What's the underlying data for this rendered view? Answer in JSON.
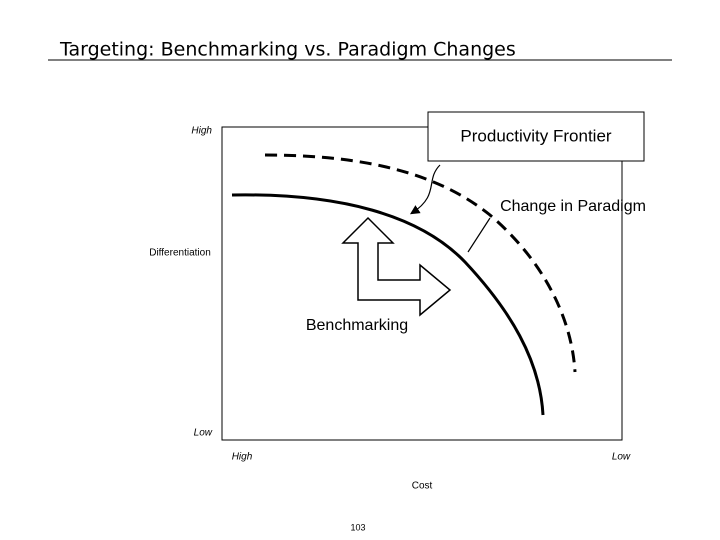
{
  "header": {
    "title": "Targeting: Benchmarking vs. Paradigm Changes"
  },
  "axes": {
    "y_high": "High",
    "y_low": "Low",
    "y_label": "Differentiation",
    "x_high": "High",
    "x_low": "Low",
    "x_label": "Cost"
  },
  "annotations": {
    "frontier": "Productivity Frontier",
    "paradigm": "Change in Paradigm",
    "benchmarking": "Benchmarking"
  },
  "footer": {
    "page": "103"
  }
}
